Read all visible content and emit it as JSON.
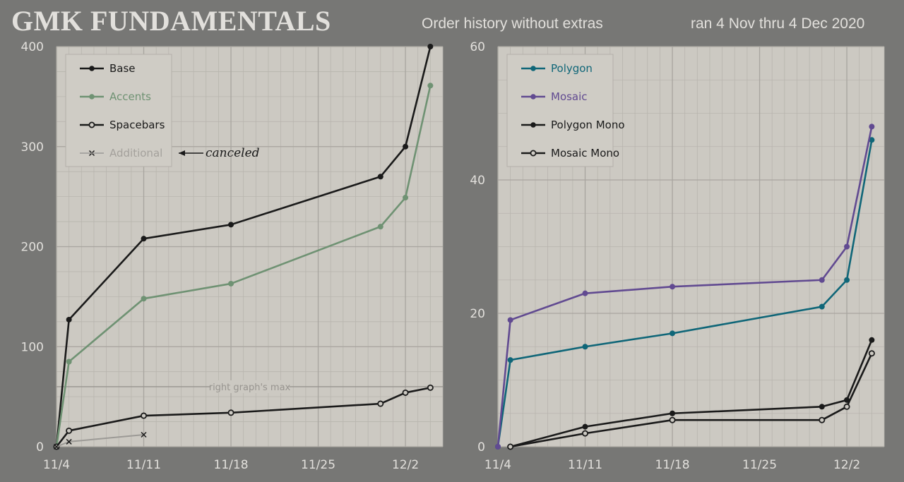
{
  "header": {
    "title": "GMK FUNDAMENTALS",
    "subtitle": "Order history without extras",
    "date_range": "ran 4 Nov thru 4 Dec 2020"
  },
  "colors": {
    "background": "#777775",
    "plot_bg": "#ccc9c2",
    "black_series": "#1a1a1a",
    "accents": "#6f9273",
    "additional": "#9c9a96",
    "polygon": "#0f6678",
    "mosaic": "#614a91"
  },
  "chart_data": [
    {
      "type": "line",
      "ylim": [
        0,
        400
      ],
      "xlim": [
        "11/4",
        "12/5"
      ],
      "x_ticks": [
        "11/4",
        "11/11",
        "11/18",
        "11/25",
        "12/2"
      ],
      "y_ticks": [
        0,
        100,
        200,
        300,
        400
      ],
      "grid": true,
      "legend": "top-left",
      "series": [
        {
          "name": "Base",
          "marker": "filled-dot",
          "color": "#1a1a1a",
          "points": [
            [
              "11/4",
              0
            ],
            [
              "11/5",
              127
            ],
            [
              "11/11",
              208
            ],
            [
              "11/18",
              222
            ],
            [
              "11/30",
              270
            ],
            [
              "12/2",
              300
            ],
            [
              "12/4",
              400
            ]
          ]
        },
        {
          "name": "Accents",
          "marker": "filled-dot",
          "color": "#6f9273",
          "points": [
            [
              "11/4",
              0
            ],
            [
              "11/5",
              85
            ],
            [
              "11/11",
              148
            ],
            [
              "11/18",
              163
            ],
            [
              "11/30",
              220
            ],
            [
              "12/2",
              249
            ],
            [
              "12/4",
              361
            ]
          ]
        },
        {
          "name": "Spacebars",
          "marker": "hollow-dot",
          "color": "#1a1a1a",
          "points": [
            [
              "11/4",
              0
            ],
            [
              "11/5",
              16
            ],
            [
              "11/11",
              31
            ],
            [
              "11/18",
              34
            ],
            [
              "11/30",
              43
            ],
            [
              "12/2",
              54
            ],
            [
              "12/4",
              59
            ]
          ]
        },
        {
          "name": "Additional",
          "marker": "x",
          "color": "#9c9a96",
          "points": [
            [
              "11/4",
              0
            ],
            [
              "11/5",
              5
            ],
            [
              "11/11",
              12
            ]
          ]
        }
      ],
      "annotations": [
        {
          "text": "canceled",
          "target": "Additional"
        },
        {
          "text": "right graph's max",
          "y": 60
        }
      ]
    },
    {
      "type": "line",
      "ylim": [
        0,
        60
      ],
      "xlim": [
        "11/4",
        "12/5"
      ],
      "x_ticks": [
        "11/4",
        "11/11",
        "11/18",
        "11/25",
        "12/2"
      ],
      "y_ticks": [
        0,
        20,
        40,
        60
      ],
      "grid": true,
      "legend": "top-left",
      "series": [
        {
          "name": "Polygon",
          "marker": "filled-dot",
          "color": "#0f6678",
          "points": [
            [
              "11/4",
              0
            ],
            [
              "11/5",
              13
            ],
            [
              "11/11",
              15
            ],
            [
              "11/18",
              17
            ],
            [
              "11/30",
              21
            ],
            [
              "12/2",
              25
            ],
            [
              "12/4",
              46
            ]
          ]
        },
        {
          "name": "Mosaic",
          "marker": "filled-dot",
          "color": "#614a91",
          "points": [
            [
              "11/4",
              0
            ],
            [
              "11/5",
              19
            ],
            [
              "11/11",
              23
            ],
            [
              "11/18",
              24
            ],
            [
              "11/30",
              25
            ],
            [
              "12/2",
              30
            ],
            [
              "12/4",
              48
            ]
          ]
        },
        {
          "name": "Polygon Mono",
          "marker": "filled-dot",
          "color": "#1a1a1a",
          "points": [
            [
              "11/5",
              0
            ],
            [
              "11/11",
              3
            ],
            [
              "11/18",
              5
            ],
            [
              "11/30",
              6
            ],
            [
              "12/2",
              7
            ],
            [
              "12/4",
              16
            ]
          ]
        },
        {
          "name": "Mosaic Mono",
          "marker": "hollow-dot",
          "color": "#1a1a1a",
          "points": [
            [
              "11/5",
              0
            ],
            [
              "11/11",
              2
            ],
            [
              "11/18",
              4
            ],
            [
              "11/30",
              4
            ],
            [
              "12/2",
              6
            ],
            [
              "12/4",
              14
            ]
          ]
        }
      ]
    }
  ]
}
